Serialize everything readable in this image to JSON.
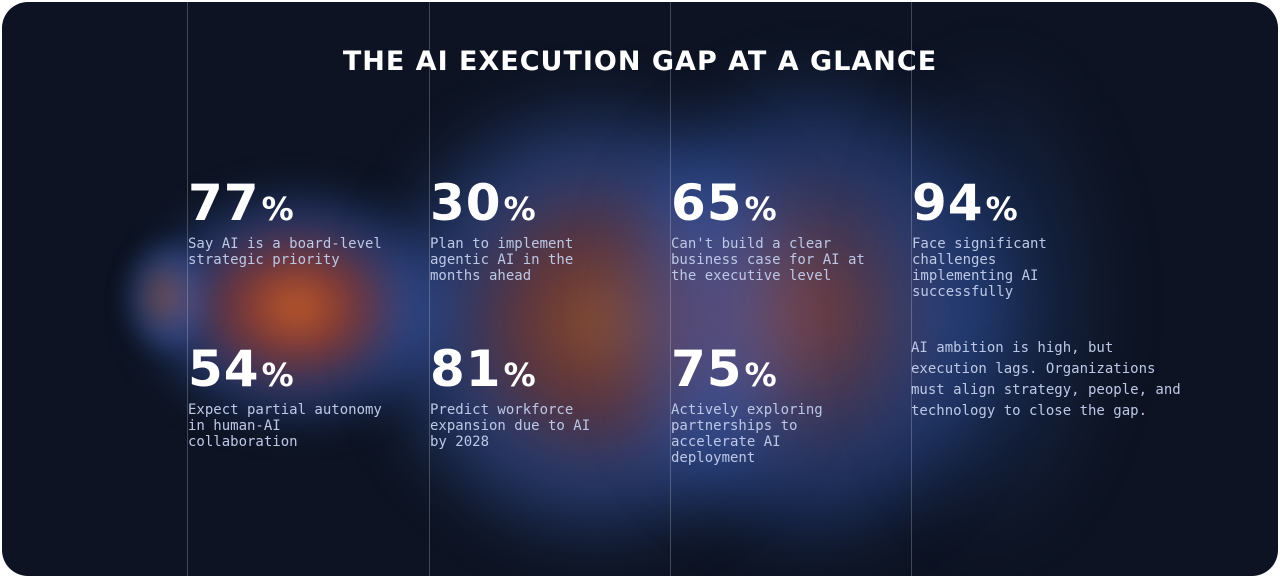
{
  "title": "THE AI EXECUTION GAP AT A GLANCE",
  "stats": [
    {
      "value": "77",
      "unit": "%",
      "label": "Say AI is a board-level strategic priority"
    },
    {
      "value": "30",
      "unit": "%",
      "label": "Plan to implement agentic AI in the months ahead"
    },
    {
      "value": "65",
      "unit": "%",
      "label": "Can't build a clear business case for AI at the executive level"
    },
    {
      "value": "94",
      "unit": "%",
      "label": "Face significant challenges implementing AI successfully"
    },
    {
      "value": "54",
      "unit": "%",
      "label": "Expect partial autonomy in human-AI collaboration"
    },
    {
      "value": "81",
      "unit": "%",
      "label": "Predict workforce expansion due to AI by 2028"
    },
    {
      "value": "75",
      "unit": "%",
      "label": "Actively exploring partnerships to accelerate AI deployment"
    }
  ],
  "summary": "AI ambition is high, but execution lags. Organizations must align strategy, people, and technology to close the gap.",
  "colors": {
    "background": "#0d1322",
    "text": "#ffffff",
    "muted_text": "#bcc8e6",
    "glow_warm": "#ff7828",
    "glow_cool": "#466ed2"
  }
}
